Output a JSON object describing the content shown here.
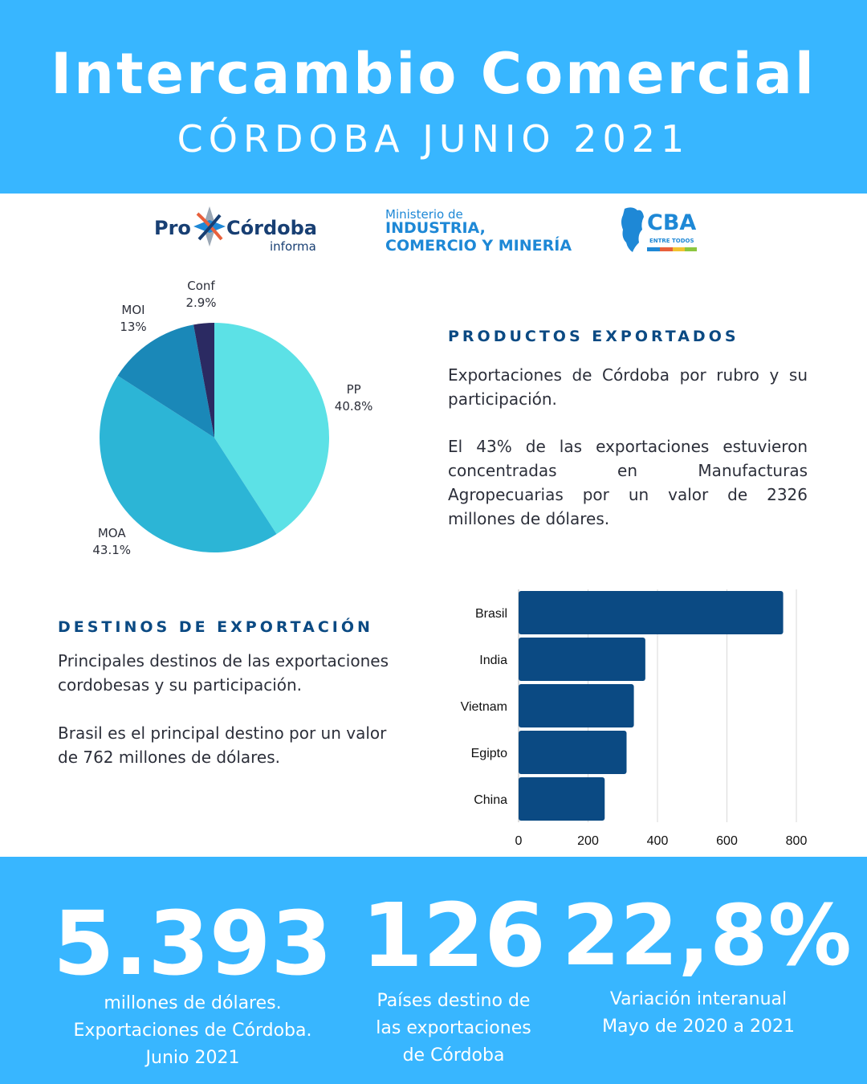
{
  "header": {
    "title": "Intercambio Comercial",
    "subtitle": "CÓRDOBA JUNIO 2021"
  },
  "logos": {
    "procordoba": {
      "pro": "Pro",
      "cordoba": "Córdoba",
      "informa": "informa"
    },
    "ministerio": {
      "line1": "Ministerio de",
      "line2": "INDUSTRIA,",
      "line3": "COMERCIO Y MINERÍA"
    },
    "cba": {
      "name": "CBA",
      "tagline": "ENTRE TODOS"
    }
  },
  "productos": {
    "title": "PRODUCTOS EXPORTADOS",
    "p1": "Exportaciones de Córdoba por rubro y su participación.",
    "p2": "El 43% de las exportaciones estuvieron concentradas en Manufacturas Agropecuarias por un valor de 2326 millones de dólares."
  },
  "destinos": {
    "title": "DESTINOS DE EXPORTACIÓN",
    "p1": "Principales destinos de las exportaciones cordobesas y su participación.",
    "p2": "Brasil es el principal destino por un valor de 762 millones de dólares."
  },
  "chart_data": [
    {
      "type": "pie",
      "title": "",
      "slices": [
        {
          "label": "PP",
          "display": "40.8%",
          "value": 40.8,
          "color": "#5ce1e6"
        },
        {
          "label": "MOA",
          "display": "43.1%",
          "value": 43.1,
          "color": "#2cb5d6"
        },
        {
          "label": "MOI",
          "display": "13%",
          "value": 13.0,
          "color": "#1a88b8"
        },
        {
          "label": "Conf",
          "display": "2.9%",
          "value": 2.9,
          "color": "#2b2a62"
        }
      ]
    },
    {
      "type": "bar",
      "orientation": "horizontal",
      "title": "",
      "categories": [
        "Brasil",
        "India",
        "Vietnam",
        "Egipto",
        "China"
      ],
      "values": [
        762,
        365,
        332,
        311,
        248
      ],
      "xlim": [
        0,
        800
      ],
      "xticks": [
        0,
        200,
        400,
        600,
        800
      ],
      "grid": true,
      "bar_color": "#0b4a83"
    }
  ],
  "stats": [
    {
      "value": "5.393",
      "lines": [
        "millones de dólares.",
        "Exportaciones de Córdoba.",
        "Junio 2021"
      ]
    },
    {
      "value": "126",
      "lines": [
        "Países destino de",
        "las exportaciones",
        "de Córdoba"
      ]
    },
    {
      "value": "22,8%",
      "lines": [
        "Variación interanual",
        "Mayo de 2020 a 2021"
      ]
    }
  ],
  "colors": {
    "header_bg": "#38b6ff",
    "accent_dark": "#0b4a83"
  }
}
